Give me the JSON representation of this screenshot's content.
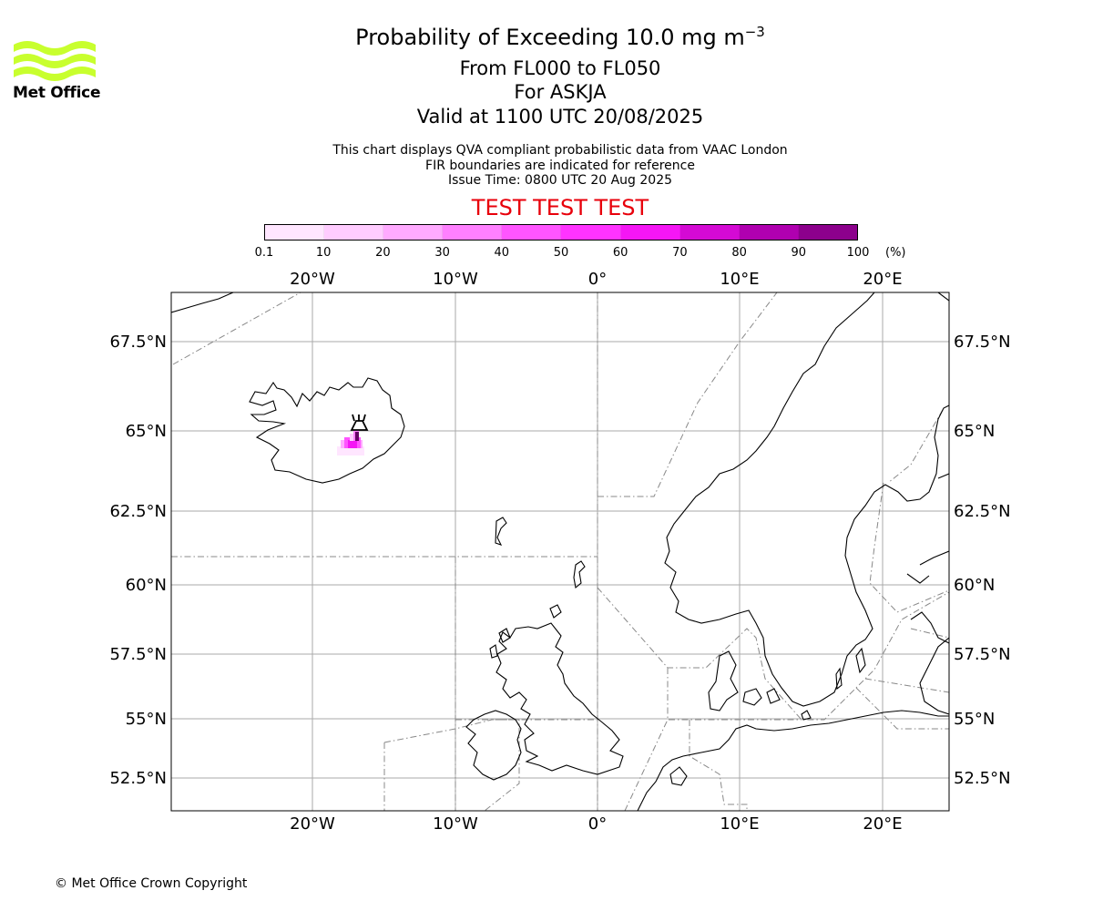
{
  "logo": {
    "text": "Met Office"
  },
  "title": {
    "main_prefix": "Probability of Exceeding 10.0 mg m",
    "main_exponent": "−3",
    "levels": "From FL000 to FL050",
    "volcano": "For ASKJA",
    "valid": "Valid at 1100 UTC 20/08/2025"
  },
  "info": {
    "line1": "This chart displays QVA compliant probabilistic data from VAAC London",
    "line2": "FIR boundaries are indicated for reference",
    "line3": "Issue Time: 0800 UTC 20 Aug 2025"
  },
  "banner": "TEST TEST TEST",
  "colorbar": {
    "ticks": [
      "0.1",
      "10",
      "20",
      "30",
      "40",
      "50",
      "60",
      "70",
      "80",
      "90",
      "100"
    ],
    "unit": "(%)",
    "colors": [
      "#ffe6ff",
      "#ffccff",
      "#ffaaff",
      "#ff80ff",
      "#ff55ff",
      "#ff33ff",
      "#f516f5",
      "#d40ad4",
      "#b000b0",
      "#8c008c",
      "#660066"
    ]
  },
  "map": {
    "lon_labels": [
      "20°W",
      "10°W",
      "0°",
      "10°E",
      "20°E"
    ],
    "lat_labels": [
      "67.5°N",
      "65°N",
      "62.5°N",
      "60°N",
      "57.5°N",
      "55°N",
      "52.5°N"
    ],
    "volcano_name": "ASKJA",
    "volcano_icon": "volcano-icon",
    "grid_color": "#aaaaaa",
    "fir_color": "#888888"
  },
  "copyright": "© Met Office Crown Copyright"
}
